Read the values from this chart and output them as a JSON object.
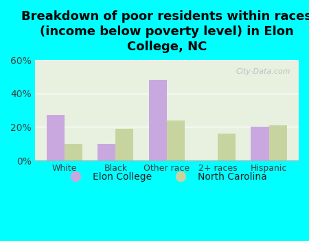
{
  "title": "Breakdown of poor residents within races\n(income below poverty level) in Elon\nCollege, NC",
  "categories": [
    "White",
    "Black",
    "Other race",
    "2+ races",
    "Hispanic"
  ],
  "elon_college": [
    27,
    10,
    48,
    0,
    20
  ],
  "north_carolina": [
    10,
    19,
    24,
    16,
    21
  ],
  "elon_color": "#c9a8e0",
  "nc_color": "#c8d4a0",
  "background_color": "#00ffff",
  "plot_bg": "#e8f0e0",
  "ylim": [
    0,
    60
  ],
  "yticks": [
    0,
    20,
    40,
    60
  ],
  "ytick_labels": [
    "0%",
    "20%",
    "40%",
    "60%"
  ],
  "legend_labels": [
    "Elon College",
    "North Carolina"
  ],
  "title_fontsize": 13,
  "bar_width": 0.35,
  "watermark": "City-Data.com"
}
